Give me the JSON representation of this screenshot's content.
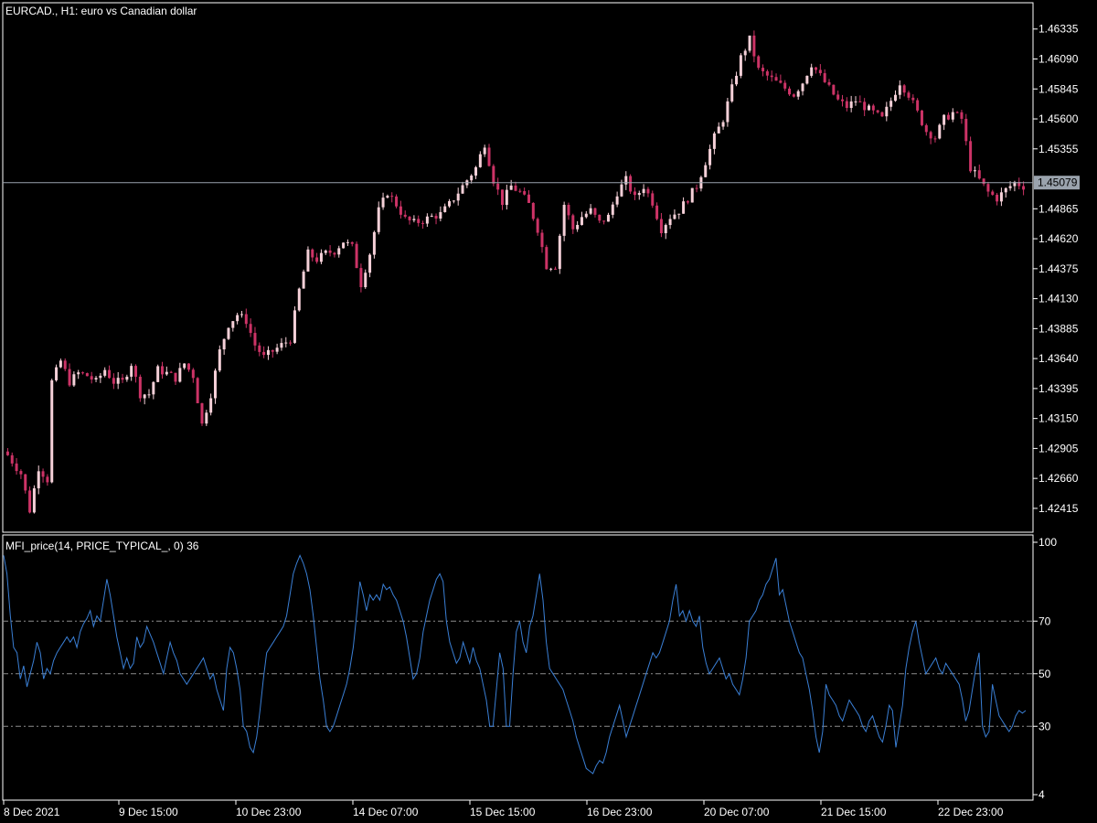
{
  "header": {
    "title": "EURCAD., H1:  euro vs Canadian dollar"
  },
  "indicator": {
    "title": "MFI_price(14, PRICE_TYPICAL_, 0) 36"
  },
  "colors": {
    "background": "#000000",
    "frame": "#ffffff",
    "candle_bear": "#cc3366",
    "candle_bull": "#f5d0d8",
    "candle_up_accent": "#00c000",
    "price_line": "#9aa3ad",
    "price_badge": "#9aa3ad",
    "mfi_line": "#3a7fd5",
    "level_line": "#8c8c8c"
  },
  "chart_data": [
    {
      "type": "candlestick",
      "symbol": "EURCAD.",
      "timeframe": "H1",
      "current_price": "1.45079",
      "ylim": [
        1.4222,
        1.4655
      ],
      "y_ticks": [
        "1.46335",
        "1.46090",
        "1.45845",
        "1.45600",
        "1.45355",
        "1.44865",
        "1.44620",
        "1.44375",
        "1.44130",
        "1.43885",
        "1.43640",
        "1.43395",
        "1.43150",
        "1.42905",
        "1.42660",
        "1.42415"
      ],
      "x_ticks": [
        "8 Dec 2021",
        "9 Dec 15:00",
        "10 Dec 23:00",
        "14 Dec 07:00",
        "15 Dec 15:00",
        "16 Dec 23:00",
        "20 Dec 07:00",
        "21 Dec 15:00",
        "22 Dec 23:00"
      ],
      "close_path": [
        [
          0,
          1.4285
        ],
        [
          3,
          1.427
        ],
        [
          5,
          1.424
        ],
        [
          7,
          1.4275
        ],
        [
          9,
          1.4265
        ],
        [
          10,
          1.4345
        ],
        [
          12,
          1.4362
        ],
        [
          14,
          1.4345
        ],
        [
          16,
          1.4352
        ],
        [
          18,
          1.435
        ],
        [
          20,
          1.4345
        ],
        [
          22,
          1.4355
        ],
        [
          24,
          1.4345
        ],
        [
          26,
          1.4345
        ],
        [
          28,
          1.436
        ],
        [
          30,
          1.4335
        ],
        [
          32,
          1.4335
        ],
        [
          34,
          1.4355
        ],
        [
          36,
          1.4352
        ],
        [
          38,
          1.4348
        ],
        [
          40,
          1.436
        ],
        [
          42,
          1.435
        ],
        [
          43,
          1.433
        ],
        [
          44,
          1.431
        ],
        [
          46,
          1.4335
        ],
        [
          48,
          1.437
        ],
        [
          50,
          1.4392
        ],
        [
          52,
          1.44
        ],
        [
          54,
          1.4395
        ],
        [
          56,
          1.4375
        ],
        [
          58,
          1.4365
        ],
        [
          60,
          1.437
        ],
        [
          62,
          1.4375
        ],
        [
          64,
          1.438
        ],
        [
          66,
          1.442
        ],
        [
          68,
          1.445
        ],
        [
          70,
          1.4445
        ],
        [
          72,
          1.445
        ],
        [
          74,
          1.4452
        ],
        [
          76,
          1.446
        ],
        [
          78,
          1.4455
        ],
        [
          80,
          1.4425
        ],
        [
          82,
          1.445
        ],
        [
          84,
          1.4485
        ],
        [
          86,
          1.45
        ],
        [
          88,
          1.449
        ],
        [
          90,
          1.4478
        ],
        [
          92,
          1.4475
        ],
        [
          94,
          1.4477
        ],
        [
          96,
          1.448
        ],
        [
          98,
          1.4482
        ],
        [
          100,
          1.449
        ],
        [
          102,
          1.45
        ],
        [
          104,
          1.451
        ],
        [
          106,
          1.452
        ],
        [
          108,
          1.454
        ],
        [
          110,
          1.451
        ],
        [
          112,
          1.4492
        ],
        [
          114,
          1.4505
        ],
        [
          116,
          1.45
        ],
        [
          118,
          1.449
        ],
        [
          120,
          1.447
        ],
        [
          122,
          1.444
        ],
        [
          124,
          1.444
        ],
        [
          126,
          1.449
        ],
        [
          128,
          1.447
        ],
        [
          130,
          1.448
        ],
        [
          132,
          1.4485
        ],
        [
          134,
          1.4475
        ],
        [
          136,
          1.448
        ],
        [
          138,
          1.45
        ],
        [
          140,
          1.451
        ],
        [
          142,
          1.4495
        ],
        [
          144,
          1.4505
        ],
        [
          146,
          1.4492
        ],
        [
          148,
          1.447
        ],
        [
          150,
          1.448
        ],
        [
          152,
          1.4485
        ],
        [
          154,
          1.4495
        ],
        [
          156,
          1.4505
        ],
        [
          158,
          1.4525
        ],
        [
          160,
          1.4545
        ],
        [
          162,
          1.456
        ],
        [
          164,
          1.4585
        ],
        [
          166,
          1.461
        ],
        [
          168,
          1.4625
        ],
        [
          170,
          1.46
        ],
        [
          172,
          1.4595
        ],
        [
          174,
          1.459
        ],
        [
          176,
          1.4585
        ],
        [
          178,
          1.458
        ],
        [
          180,
          1.459
        ],
        [
          182,
          1.4605
        ],
        [
          184,
          1.4595
        ],
        [
          186,
          1.4585
        ],
        [
          188,
          1.4575
        ],
        [
          190,
          1.457
        ],
        [
          192,
          1.4575
        ],
        [
          194,
          1.457
        ],
        [
          196,
          1.4565
        ],
        [
          198,
          1.456
        ],
        [
          200,
          1.4575
        ],
        [
          202,
          1.459
        ],
        [
          204,
          1.458
        ],
        [
          206,
          1.4565
        ],
        [
          208,
          1.455
        ],
        [
          210,
          1.4545
        ],
        [
          212,
          1.456
        ],
        [
          214,
          1.4565
        ],
        [
          216,
          1.456
        ],
        [
          218,
          1.452
        ],
        [
          220,
          1.451
        ],
        [
          222,
          1.45
        ],
        [
          224,
          1.4495
        ],
        [
          226,
          1.4502
        ],
        [
          228,
          1.4508
        ],
        [
          230,
          1.4505
        ]
      ],
      "candle_count": 231
    },
    {
      "type": "line",
      "name": "MFI_price(14, PRICE_TYPICAL_, 0)",
      "current_value": "36",
      "ylim": [
        4,
        100
      ],
      "y_ticks": [
        "100",
        "70",
        "50",
        "30",
        "4"
      ],
      "levels": [
        70,
        50,
        30
      ],
      "values": [
        95,
        88,
        72,
        60,
        58,
        48,
        53,
        45,
        50,
        55,
        62,
        58,
        48,
        52,
        50,
        55,
        58,
        60,
        62,
        64,
        62,
        64,
        60,
        66,
        69,
        71,
        74,
        68,
        72,
        70,
        78,
        86,
        80,
        72,
        64,
        58,
        52,
        56,
        52,
        54,
        64,
        60,
        62,
        68,
        65,
        62,
        58,
        54,
        50,
        56,
        62,
        58,
        55,
        50,
        48,
        46,
        48,
        50,
        52,
        54,
        56,
        52,
        48,
        50,
        44,
        40,
        36,
        52,
        60,
        58,
        52,
        44,
        30,
        28,
        22,
        20,
        26,
        36,
        48,
        58,
        60,
        62,
        64,
        66,
        68,
        72,
        80,
        88,
        92,
        95,
        92,
        88,
        82,
        72,
        60,
        48,
        40,
        30,
        28,
        30,
        34,
        38,
        42,
        46,
        52,
        60,
        72,
        85,
        80,
        74,
        80,
        78,
        80,
        78,
        84,
        82,
        83,
        80,
        78,
        74,
        70,
        64,
        56,
        48,
        50,
        56,
        66,
        72,
        78,
        82,
        86,
        88,
        85,
        70,
        62,
        58,
        54,
        56,
        62,
        58,
        54,
        60,
        55,
        52,
        46,
        40,
        30,
        30,
        44,
        58,
        52,
        30,
        30,
        50,
        66,
        70,
        62,
        58,
        68,
        72,
        80,
        88,
        78,
        62,
        52,
        50,
        48,
        46,
        44,
        40,
        36,
        32,
        26,
        22,
        18,
        14,
        13,
        12,
        15,
        17,
        16,
        20,
        26,
        30,
        34,
        38,
        32,
        26,
        30,
        34,
        38,
        42,
        46,
        50,
        54,
        58,
        56,
        58,
        62,
        66,
        70,
        78,
        84,
        72,
        74,
        70,
        74,
        70,
        68,
        72,
        60,
        54,
        50,
        52,
        54,
        56,
        52,
        48,
        50,
        46,
        44,
        42,
        48,
        56,
        70,
        72,
        74,
        78,
        80,
        84,
        86,
        90,
        94,
        80,
        82,
        76,
        70,
        66,
        62,
        58,
        56,
        50,
        44,
        36,
        26,
        20,
        28,
        46,
        42,
        40,
        38,
        34,
        32,
        36,
        40,
        38,
        36,
        34,
        30,
        28,
        32,
        34,
        30,
        26,
        24,
        30,
        38,
        36,
        22,
        30,
        38,
        52,
        60,
        66,
        70,
        62,
        56,
        50,
        52,
        54,
        56,
        52,
        50,
        54,
        52,
        50,
        48,
        46,
        40,
        32,
        36,
        44,
        52,
        58,
        30,
        26,
        28,
        46,
        40,
        34,
        32,
        30,
        28,
        30,
        34,
        36,
        35,
        36
      ]
    }
  ]
}
